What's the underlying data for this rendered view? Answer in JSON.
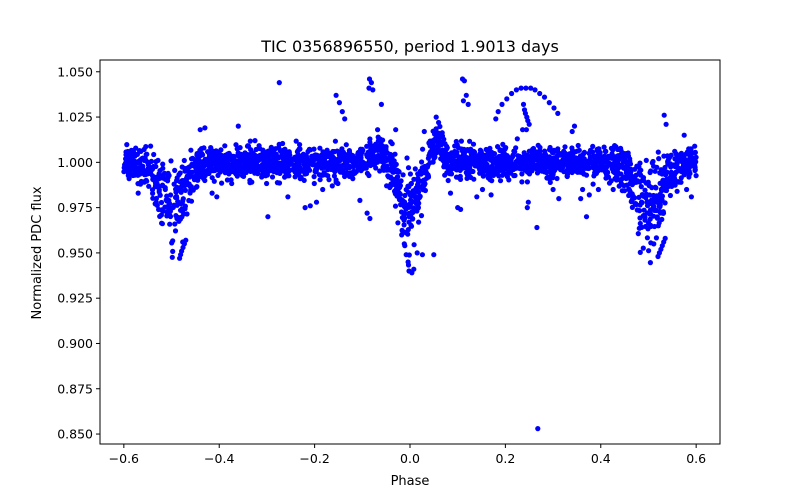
{
  "chart_data": {
    "type": "scatter",
    "title": "TIC 0356896550, period 1.9013 days",
    "xlabel": "Phase",
    "ylabel": "Normalized PDC flux",
    "xlim": [
      -0.65,
      0.65
    ],
    "ylim": [
      0.8445,
      1.0565
    ],
    "xticks": [
      -0.6,
      -0.4,
      -0.2,
      0.0,
      0.2,
      0.4,
      0.6
    ],
    "xtick_labels": [
      "−0.6",
      "−0.4",
      "−0.2",
      "0.0",
      "0.2",
      "0.4",
      "0.6"
    ],
    "yticks": [
      0.85,
      0.875,
      0.9,
      0.925,
      0.95,
      0.975,
      1.0,
      1.025,
      1.05
    ],
    "ytick_labels": [
      "0.850",
      "0.875",
      "0.900",
      "0.925",
      "0.950",
      "0.975",
      "1.000",
      "1.025",
      "1.050"
    ],
    "marker_color": "#0000ff",
    "series": [
      {
        "name": "PDC flux",
        "x_range": [
          -0.6,
          0.6
        ],
        "baseline": 1.0,
        "scatter_band": 0.013,
        "dips": [
          {
            "center": -0.5,
            "depth": 0.033,
            "width": 0.028
          },
          {
            "center": 0.0,
            "depth": 0.036,
            "width": 0.022
          },
          {
            "center": 0.5,
            "depth": 0.033,
            "width": 0.028
          }
        ],
        "outliers": [
          {
            "x": -0.274,
            "y": 1.044
          },
          {
            "x": -0.298,
            "y": 0.97
          },
          {
            "x": -0.256,
            "y": 0.981
          },
          {
            "x": -0.155,
            "y": 1.037
          },
          {
            "x": -0.148,
            "y": 1.033
          },
          {
            "x": -0.142,
            "y": 1.028
          },
          {
            "x": -0.137,
            "y": 1.024
          },
          {
            "x": -0.085,
            "y": 1.046
          },
          {
            "x": -0.081,
            "y": 1.044
          },
          {
            "x": -0.078,
            "y": 1.04
          },
          {
            "x": -0.086,
            "y": 1.041
          },
          {
            "x": -0.06,
            "y": 1.032
          },
          {
            "x": -0.196,
            "y": 0.978
          },
          {
            "x": -0.183,
            "y": 0.985
          },
          {
            "x": -0.12,
            "y": 0.991
          },
          {
            "x": -0.105,
            "y": 0.979
          },
          {
            "x": -0.09,
            "y": 0.972
          },
          {
            "x": -0.084,
            "y": 0.969
          },
          {
            "x": -0.22,
            "y": 0.975
          },
          {
            "x": -0.209,
            "y": 0.976
          },
          {
            "x": -0.163,
            "y": 0.987
          },
          {
            "x": -0.012,
            "y": 0.955
          },
          {
            "x": -0.008,
            "y": 0.949
          },
          {
            "x": -0.004,
            "y": 0.945
          },
          {
            "x": -0.002,
            "y": 0.94
          },
          {
            "x": 0.004,
            "y": 0.939
          },
          {
            "x": 0.008,
            "y": 0.941
          },
          {
            "x": 0.015,
            "y": 0.95
          },
          {
            "x": 0.026,
            "y": 0.949
          },
          {
            "x": 0.05,
            "y": 0.949
          },
          {
            "x": 0.11,
            "y": 1.046
          },
          {
            "x": 0.114,
            "y": 1.045
          },
          {
            "x": 0.118,
            "y": 1.037
          },
          {
            "x": 0.112,
            "y": 1.034
          },
          {
            "x": 0.122,
            "y": 1.032
          },
          {
            "x": 0.08,
            "y": 0.99
          },
          {
            "x": 0.085,
            "y": 0.983
          },
          {
            "x": 0.1,
            "y": 0.975
          },
          {
            "x": 0.106,
            "y": 0.974
          },
          {
            "x": 0.14,
            "y": 0.981
          },
          {
            "x": 0.152,
            "y": 0.985
          },
          {
            "x": 0.17,
            "y": 0.982
          },
          {
            "x": 0.18,
            "y": 1.024
          },
          {
            "x": 0.185,
            "y": 1.028
          },
          {
            "x": 0.193,
            "y": 1.032
          },
          {
            "x": 0.203,
            "y": 1.035
          },
          {
            "x": 0.213,
            "y": 1.038
          },
          {
            "x": 0.223,
            "y": 1.04
          },
          {
            "x": 0.233,
            "y": 1.041
          },
          {
            "x": 0.243,
            "y": 1.041
          },
          {
            "x": 0.253,
            "y": 1.041
          },
          {
            "x": 0.262,
            "y": 1.04
          },
          {
            "x": 0.272,
            "y": 1.038
          },
          {
            "x": 0.282,
            "y": 1.036
          },
          {
            "x": 0.292,
            "y": 1.033
          },
          {
            "x": 0.302,
            "y": 1.03
          },
          {
            "x": 0.31,
            "y": 1.027
          },
          {
            "x": 0.238,
            "y": 1.032
          },
          {
            "x": 0.24,
            "y": 1.029
          },
          {
            "x": 0.242,
            "y": 1.027
          },
          {
            "x": 0.245,
            "y": 1.025
          },
          {
            "x": 0.247,
            "y": 1.023
          },
          {
            "x": 0.25,
            "y": 1.021
          },
          {
            "x": 0.244,
            "y": 1.018
          },
          {
            "x": 0.236,
            "y": 1.018
          },
          {
            "x": 0.225,
            "y": 1.013
          },
          {
            "x": 0.246,
            "y": 0.975
          },
          {
            "x": 0.248,
            "y": 0.978
          },
          {
            "x": 0.266,
            "y": 0.964
          },
          {
            "x": 0.268,
            "y": 0.853
          },
          {
            "x": 0.3,
            "y": 0.985
          },
          {
            "x": 0.312,
            "y": 0.98
          },
          {
            "x": 0.34,
            "y": 1.017
          },
          {
            "x": 0.345,
            "y": 1.02
          },
          {
            "x": 0.358,
            "y": 0.98
          },
          {
            "x": 0.362,
            "y": 0.985
          },
          {
            "x": 0.37,
            "y": 0.97
          },
          {
            "x": 0.376,
            "y": 0.982
          },
          {
            "x": 0.384,
            "y": 0.988
          },
          {
            "x": 0.395,
            "y": 0.985
          },
          {
            "x": 0.426,
            "y": 0.985
          },
          {
            "x": -0.415,
            "y": 0.983
          },
          {
            "x": -0.405,
            "y": 0.981
          },
          {
            "x": -0.36,
            "y": 1.02
          },
          {
            "x": -0.325,
            "y": 1.012
          },
          {
            "x": -0.43,
            "y": 1.019
          },
          {
            "x": -0.44,
            "y": 1.018
          },
          {
            "x": -0.47,
            "y": 0.957
          },
          {
            "x": -0.473,
            "y": 0.955
          },
          {
            "x": -0.476,
            "y": 0.953
          },
          {
            "x": -0.479,
            "y": 0.951
          },
          {
            "x": -0.481,
            "y": 0.949
          },
          {
            "x": -0.483,
            "y": 0.947
          },
          {
            "x": 0.52,
            "y": 0.948
          },
          {
            "x": 0.523,
            "y": 0.95
          },
          {
            "x": 0.526,
            "y": 0.952
          },
          {
            "x": 0.529,
            "y": 0.954
          },
          {
            "x": 0.532,
            "y": 0.956
          },
          {
            "x": 0.535,
            "y": 0.958
          },
          {
            "x": -0.57,
            "y": 0.983
          },
          {
            "x": -0.565,
            "y": 0.988
          },
          {
            "x": 0.56,
            "y": 0.984
          },
          {
            "x": 0.575,
            "y": 1.015
          },
          {
            "x": 0.58,
            "y": 0.985
          },
          {
            "x": 0.59,
            "y": 0.981
          },
          {
            "x": 0.533,
            "y": 1.026
          },
          {
            "x": 0.537,
            "y": 1.021
          },
          {
            "x": -0.513,
            "y": 0.985
          },
          {
            "x": 0.055,
            "y": 1.025
          },
          {
            "x": 0.06,
            "y": 1.022
          },
          {
            "x": -0.03,
            "y": 1.018
          },
          {
            "x": -0.068,
            "y": 1.018
          },
          {
            "x": 0.03,
            "y": 1.017
          }
        ]
      }
    ]
  }
}
